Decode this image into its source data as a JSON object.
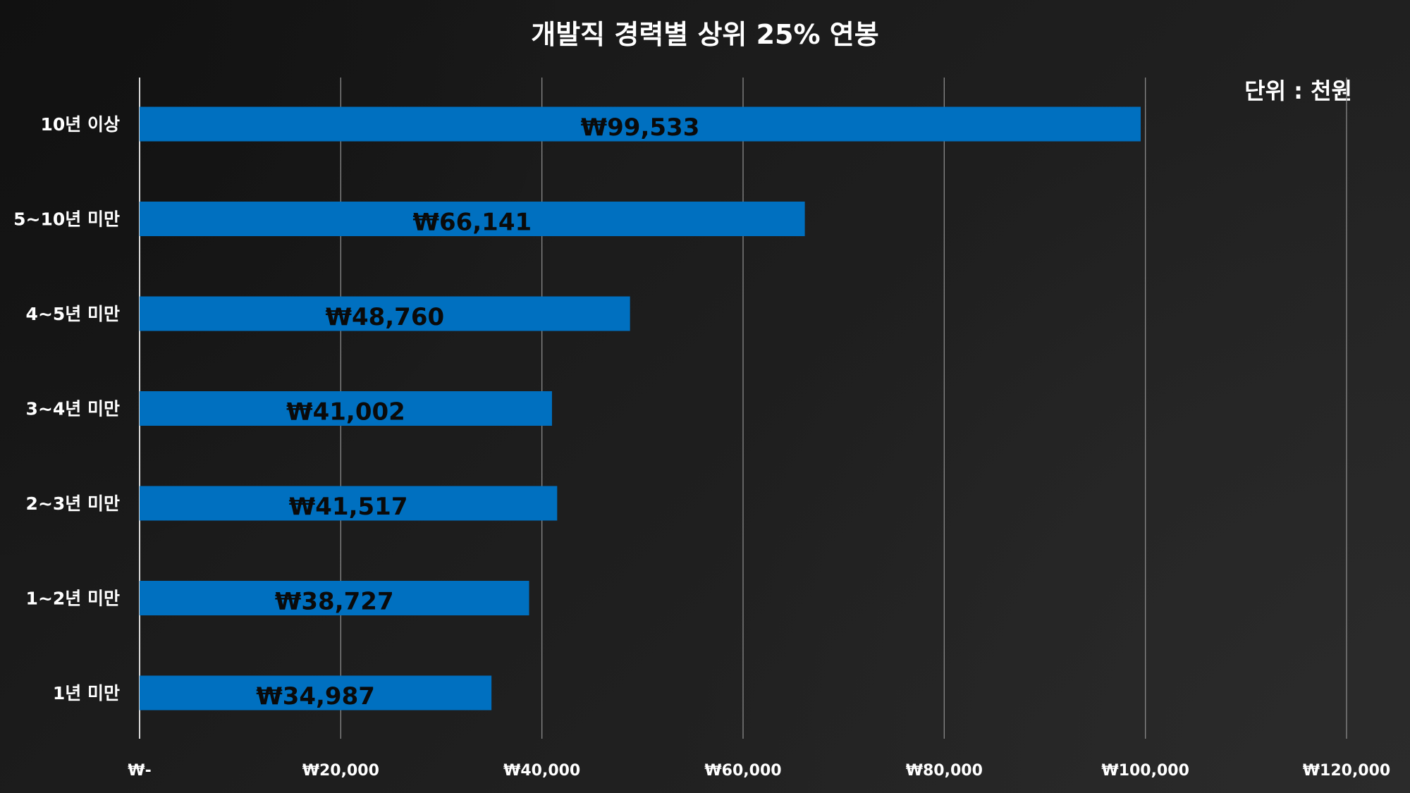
{
  "chart_data": {
    "type": "bar",
    "orientation": "horizontal",
    "title": "개발직 경력별 상위 25% 연봉",
    "unit_note": "단위 : 천원",
    "categories": [
      "10년 이상",
      "5~10년 미만",
      "4~5년 미만",
      "3~4년 미만",
      "2~3년 미만",
      "1~2년 미만",
      "1년 미만"
    ],
    "values": [
      99533,
      66141,
      48760,
      41002,
      41517,
      38727,
      34987
    ],
    "data_labels": [
      "₩99,533",
      "₩66,141",
      "₩48,760",
      "₩41,002",
      "₩41,517",
      "₩38,727",
      "₩34,987"
    ],
    "xlim": [
      0,
      120000
    ],
    "xticks": [
      0,
      20000,
      40000,
      60000,
      80000,
      100000,
      120000
    ],
    "xtick_labels": [
      "₩-",
      "₩20,000",
      "₩40,000",
      "₩60,000",
      "₩80,000",
      "₩100,000",
      "₩120,000"
    ],
    "xlabel": "",
    "ylabel": "",
    "grid": true,
    "legend": "none",
    "colors": {
      "bar": "#0070C0",
      "background": "#1c1c1c",
      "grid": "#8a8a8a",
      "text": "#ffffff",
      "data_label": "#0a0a0a"
    }
  }
}
